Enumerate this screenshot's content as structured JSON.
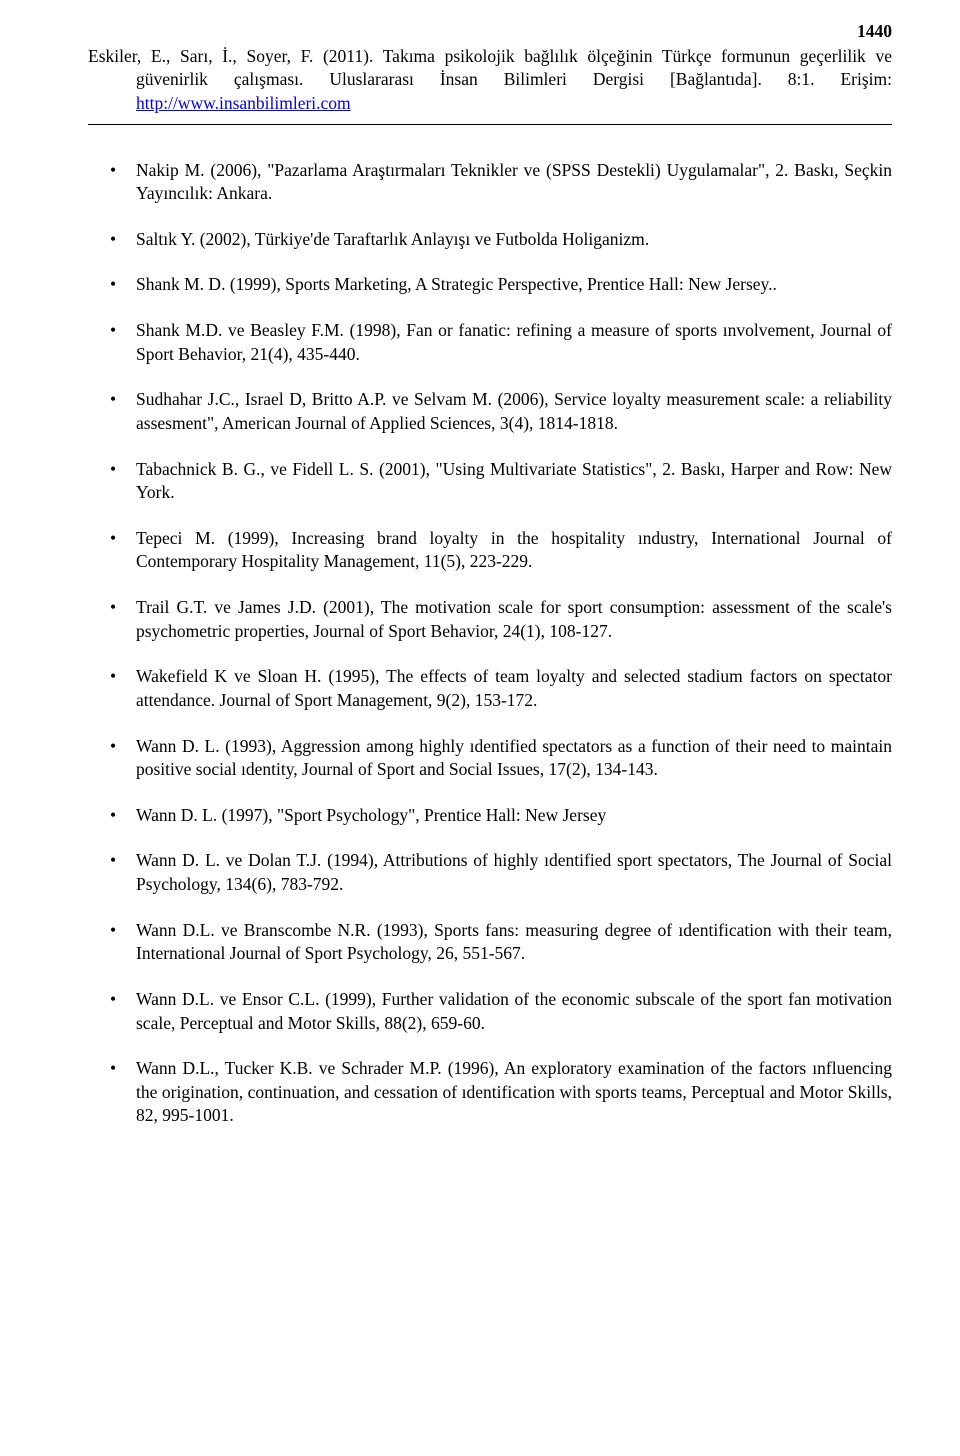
{
  "page_number": "1440",
  "header": {
    "line1": "Eskiler, E., Sarı, İ., Soyer, F. (2011). Takıma psikolojik bağlılık ölçeğinin Türkçe formunun geçerlilik ve",
    "line2": "güvenirlik çalışması. Uluslararası İnsan Bilimleri Dergisi [Bağlantıda]. 8:1. Erişim:",
    "link": "http://www.insanbilimleri.com"
  },
  "references": [
    "Nakip M. (2006), \"Pazarlama Araştırmaları Teknikler ve (SPSS Destekli) Uygulamalar\", 2. Baskı, Seçkin Yayıncılık: Ankara.",
    "Saltık Y. (2002), Türkiye'de Taraftarlık Anlayışı ve Futbolda Holiganizm.",
    "Shank M. D. (1999), Sports Marketing, A Strategic Perspective, Prentice Hall: New Jersey..",
    "Shank M.D. ve Beasley F.M. (1998), Fan or fanatic: refining a measure of sports ınvolvement, Journal of Sport Behavior, 21(4), 435-440.",
    "Sudhahar J.C., Israel D, Britto A.P. ve Selvam M. (2006), Service loyalty measurement scale: a reliability assesment\", American Journal of Applied Sciences, 3(4), 1814-1818.",
    "Tabachnick B. G., ve Fidell L. S. (2001), \"Using Multivariate Statistics\", 2. Baskı, Harper and Row: New York.",
    "Tepeci M. (1999), Increasing brand loyalty in the hospitality ındustry, International Journal of Contemporary Hospitality Management, 11(5), 223-229.",
    "Trail G.T. ve James J.D. (2001), The motivation scale for sport consumption: assessment of the scale's psychometric properties, Journal of Sport Behavior, 24(1), 108-127.",
    "Wakefield K ve Sloan H. (1995), The effects of team loyalty and selected stadium factors on spectator attendance. Journal of Sport Management, 9(2), 153-172.",
    "Wann D. L. (1993), Aggression among highly ıdentified spectators as a function of their need to maintain positive social ıdentity, Journal of Sport and Social Issues, 17(2), 134-143.",
    "Wann D. L. (1997), \"Sport Psychology\", Prentice Hall: New Jersey",
    "Wann D. L. ve Dolan T.J. (1994), Attributions of highly ıdentified sport spectators, The Journal of Social Psychology, 134(6), 783-792.",
    "Wann D.L. ve Branscombe N.R. (1993), Sports fans: measuring degree of ıdentification with their team, International Journal of Sport Psychology, 26, 551-567.",
    "Wann D.L. ve Ensor C.L. (1999), Further validation of the economic subscale of the sport fan motivation scale, Perceptual and Motor Skills, 88(2), 659-60.",
    "Wann D.L., Tucker K.B. ve Schrader M.P. (1996), An exploratory examination of the factors ınfluencing the origination, continuation, and cessation of ıdentification with sports teams, Perceptual and Motor Skills, 82, 995-1001."
  ]
}
